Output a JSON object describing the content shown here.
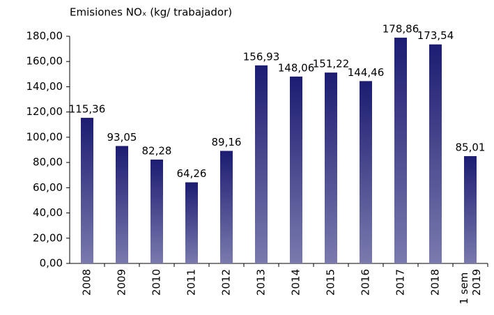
{
  "chart_data": {
    "type": "bar",
    "title": "Emisiones NOₓ (kg/ trabajador)",
    "categories": [
      "2008",
      "2009",
      "2010",
      "2011",
      "2012",
      "2013",
      "2014",
      "2015",
      "2016",
      "2017",
      "2018",
      "1 sem 2019"
    ],
    "values": [
      115.36,
      93.05,
      82.28,
      64.26,
      89.16,
      156.93,
      148.06,
      151.22,
      144.46,
      178.86,
      173.54,
      85.01
    ],
    "value_labels": [
      "115,36",
      "93,05",
      "82,28",
      "64,26",
      "89,16",
      "156,93",
      "148,06",
      "151,22",
      "144,46",
      "178,86",
      "173,54",
      "85,01"
    ],
    "color": "#1c1c72",
    "ylim": [
      0,
      180
    ],
    "yticks": [
      {
        "value": 0,
        "label": "0,00"
      },
      {
        "value": 20,
        "label": "20,00"
      },
      {
        "value": 40,
        "label": "40,00"
      },
      {
        "value": 60,
        "label": "60,00"
      },
      {
        "value": 80,
        "label": "80,00"
      },
      {
        "value": 100,
        "label": "100,00"
      },
      {
        "value": 120,
        "label": "120,00"
      },
      {
        "value": 140,
        "label": "140,00"
      },
      {
        "value": 160,
        "label": "160,00"
      },
      {
        "value": 180,
        "label": "180,00"
      }
    ],
    "grid": false
  }
}
